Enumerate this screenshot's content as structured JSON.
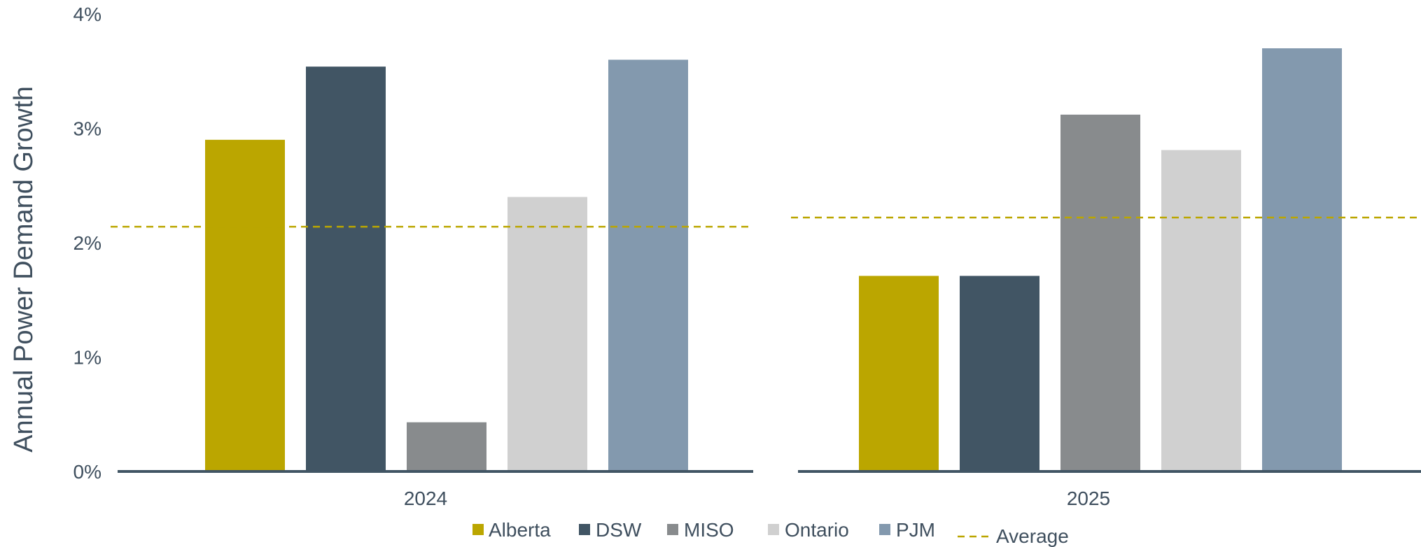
{
  "chart_data": {
    "type": "bar",
    "ylabel": "Annual Power Demand Growth",
    "ylim": [
      0,
      4
    ],
    "yticks": [
      "0%",
      "1%",
      "2%",
      "3%",
      "4%"
    ],
    "ytick_values": [
      0,
      1,
      2,
      3,
      4
    ],
    "grid": false,
    "legend_position": "bottom",
    "groups": [
      {
        "label": "2024",
        "series": [
          {
            "name": "Alberta",
            "value": 2.9
          },
          {
            "name": "DSW",
            "value": 3.54
          },
          {
            "name": "MISO",
            "value": 0.43
          },
          {
            "name": "Ontario",
            "value": 2.4
          },
          {
            "name": "PJM",
            "value": 3.6
          }
        ],
        "average": 2.14
      },
      {
        "label": "2025",
        "series": [
          {
            "name": "Alberta",
            "value": 1.71
          },
          {
            "name": "DSW",
            "value": 1.71
          },
          {
            "name": "MISO",
            "value": 3.12
          },
          {
            "name": "Ontario",
            "value": 2.81
          },
          {
            "name": "PJM",
            "value": 3.7
          }
        ],
        "average": 2.22
      }
    ],
    "legend": [
      {
        "name": "Alberta",
        "kind": "box",
        "color": "#BBA600"
      },
      {
        "name": "DSW",
        "kind": "box",
        "color": "#415564"
      },
      {
        "name": "MISO",
        "kind": "box",
        "color": "#888B8D"
      },
      {
        "name": "Ontario",
        "kind": "box",
        "color": "#D0D0D0"
      },
      {
        "name": "PJM",
        "kind": "box",
        "color": "#8399AE"
      },
      {
        "name": "Average",
        "kind": "dash",
        "color": "#BBA600"
      }
    ],
    "colors": {
      "Alberta": "#BBA600",
      "DSW": "#415564",
      "MISO": "#888B8D",
      "Ontario": "#D0D0D0",
      "PJM": "#8399AE",
      "average": "#BBA600",
      "axis": "#415564",
      "text": "#3F4F5E"
    }
  }
}
